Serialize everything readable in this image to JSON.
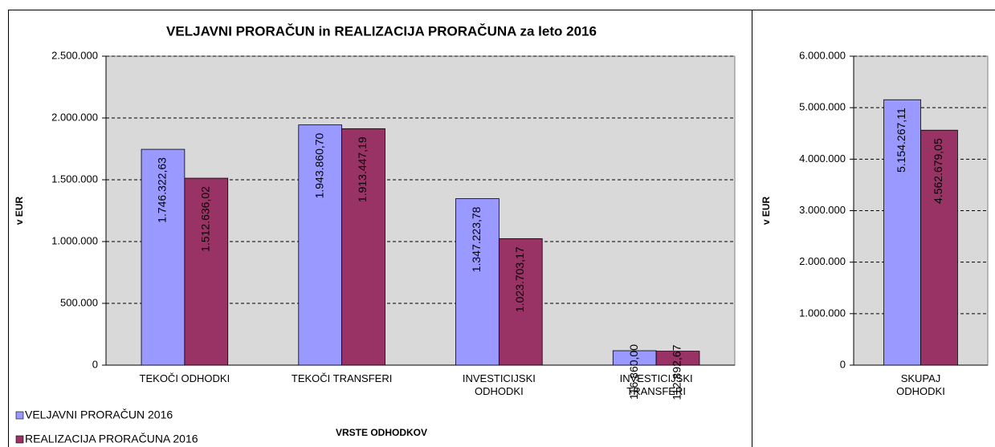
{
  "chart_data": [
    {
      "type": "bar",
      "title": "VELJAVNI PRORAČUN in REALIZACIJA PRORAČUNA za leto 2016",
      "ylabel": "v EUR",
      "xlabel": "VRSTE ODHODKOV",
      "categories": [
        "TEKOČI ODHODKI",
        "TEKOČI TRANSFERI",
        "INVESTICIJSKI\nODHODKI",
        "INVESTICIJSKI\nTRANSFERI"
      ],
      "series": [
        {
          "name": "VELJAVNI PRORAČUN 2016",
          "color": "#9999ff",
          "values": [
            1746322.63,
            1943860.7,
            1347223.78,
            116860.0
          ],
          "value_labels": [
            "1.746.322,63",
            "1.943.860,70",
            "1.347.223,78",
            "116.860,00"
          ]
        },
        {
          "name": "REALIZACIJA PRORAČUNA 2016",
          "color": "#993366",
          "values": [
            1512636.02,
            1913447.19,
            1023703.17,
            112892.67
          ],
          "value_labels": [
            "1.512.636,02",
            "1.913.447,19",
            "1.023.703,17",
            "112.892,67"
          ]
        }
      ],
      "ylim": [
        0,
        2500000
      ],
      "yticks": [
        0,
        {
          "value": 500000,
          "label": "500.000"
        },
        {
          "value": 1000000,
          "label": "1.000.000"
        },
        {
          "value": 1500000,
          "label": "1.500.000"
        },
        {
          "value": 2000000,
          "label": "2.000.000"
        },
        {
          "value": 2500000,
          "label": "2.500.000"
        }
      ],
      "grid": true,
      "legend": "bottom-left"
    },
    {
      "type": "bar",
      "ylabel": "v EUR",
      "categories": [
        "SKUPAJ\nODHODKI"
      ],
      "series": [
        {
          "color": "#9999ff",
          "values": [
            5154267.11
          ],
          "value_labels": [
            "5.154.267,11"
          ]
        },
        {
          "color": "#993366",
          "values": [
            4562679.05
          ],
          "value_labels": [
            "4.562.679,05"
          ]
        }
      ],
      "ylim": [
        0,
        6000000
      ],
      "yticks": [
        0,
        {
          "value": 1000000,
          "label": "1.000.000"
        },
        {
          "value": 2000000,
          "label": "2.000.000"
        },
        {
          "value": 3000000,
          "label": "3.000.000"
        },
        {
          "value": 4000000,
          "label": "4.000.000"
        },
        {
          "value": 5000000,
          "label": "5.000.000"
        },
        {
          "value": 6000000,
          "label": "6.000.000"
        }
      ],
      "grid": true
    }
  ]
}
